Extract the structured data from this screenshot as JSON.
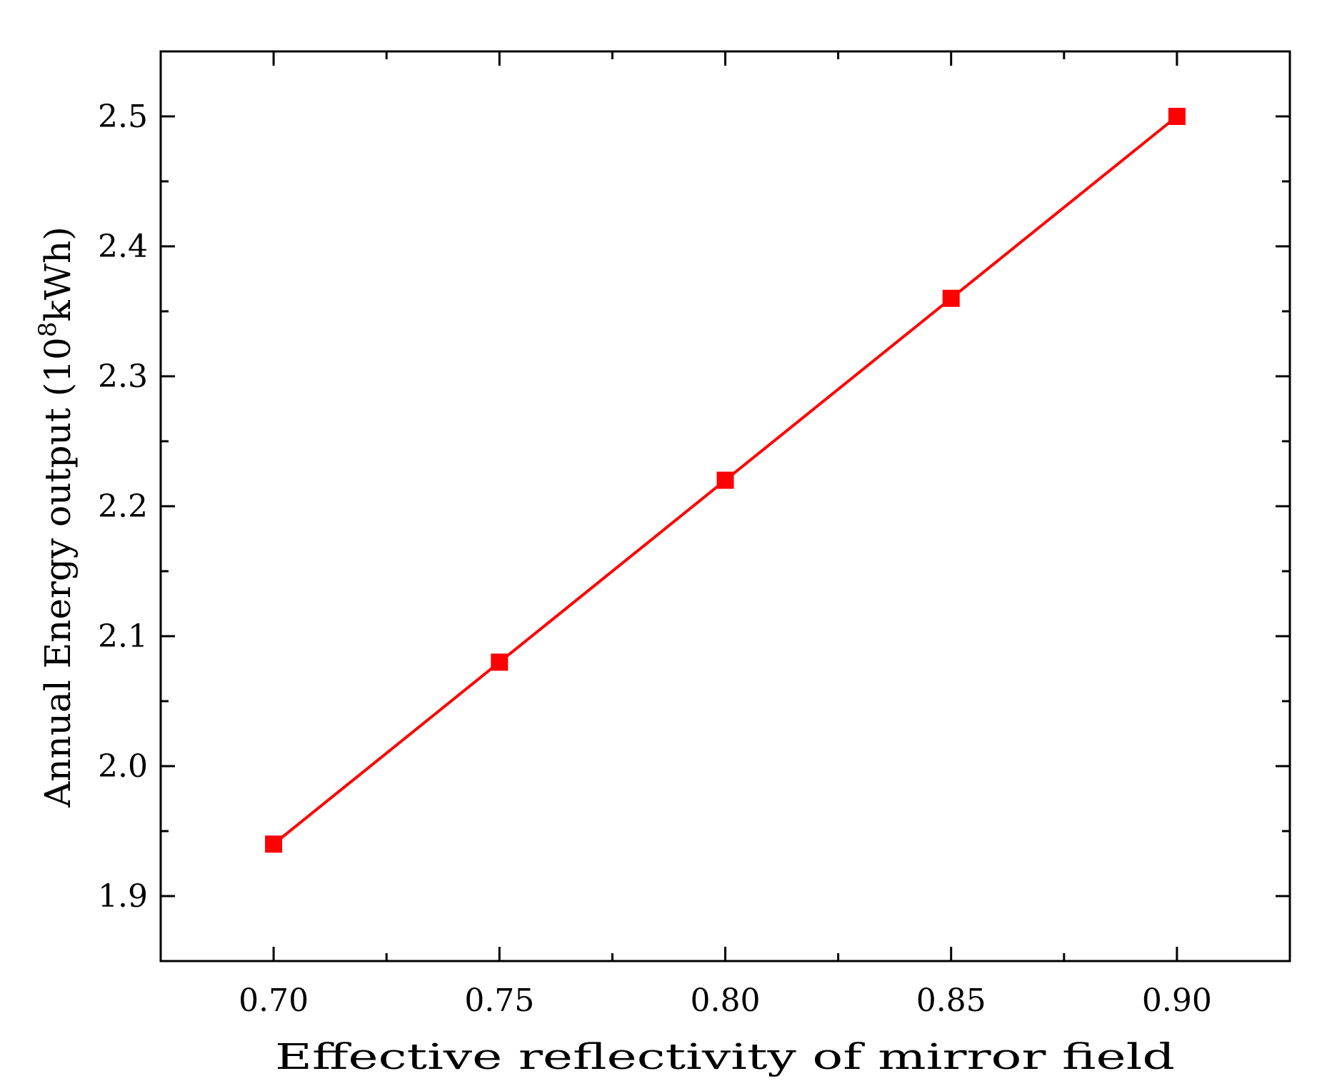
{
  "chart_data": {
    "type": "line",
    "title": "",
    "xlabel": "Effective reflectivity of mirror field",
    "ylabel_main": "Annual Energy output ",
    "ylabel_unit_open": "(10",
    "ylabel_unit_exp": "8",
    "ylabel_unit_close": "kWh)",
    "x": [
      0.7,
      0.75,
      0.8,
      0.85,
      0.9
    ],
    "series": [
      {
        "name": "Annual Energy output",
        "color": "#ff0000",
        "marker": "square",
        "values": [
          1.94,
          2.08,
          2.22,
          2.36,
          2.5
        ]
      }
    ],
    "xlim": [
      0.675,
      0.925
    ],
    "ylim": [
      1.85,
      2.55
    ],
    "xticks": [
      "0.70",
      "0.75",
      "0.80",
      "0.85",
      "0.90"
    ],
    "yticks": [
      "1.9",
      "2.0",
      "2.1",
      "2.2",
      "2.3",
      "2.4",
      "2.5"
    ],
    "grid": false,
    "legend": "none"
  }
}
